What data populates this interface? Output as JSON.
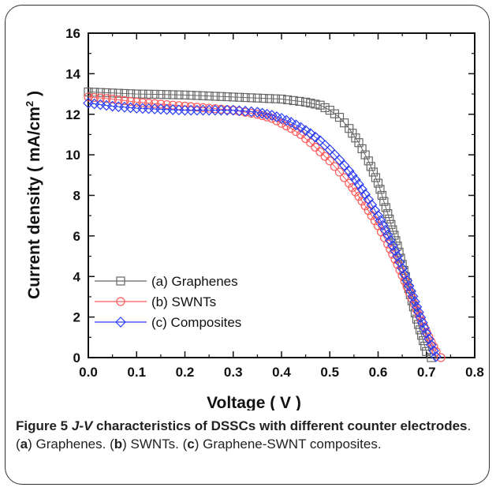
{
  "chart_data": {
    "type": "line",
    "xlabel": "Voltage ( V )",
    "ylabel": "Current density ( mA/cm",
    "ylabel_sup": "2",
    "ylabel_end": " )",
    "xlim": [
      0.0,
      0.8
    ],
    "ylim": [
      0,
      16
    ],
    "xticks": [
      "0.0",
      "0.1",
      "0.2",
      "0.3",
      "0.4",
      "0.5",
      "0.6",
      "0.7",
      "0.8"
    ],
    "yticks": [
      "0",
      "2",
      "4",
      "6",
      "8",
      "10",
      "12",
      "14",
      "16"
    ],
    "grid": false,
    "legend_position": "bottom-left",
    "series": [
      {
        "name": "(a) Graphenes",
        "marker": "square",
        "color": "#666666",
        "x": [
          0.0,
          0.05,
          0.1,
          0.15,
          0.2,
          0.25,
          0.3,
          0.35,
          0.4,
          0.45,
          0.48,
          0.5,
          0.52,
          0.54,
          0.56,
          0.58,
          0.6,
          0.62,
          0.64,
          0.66,
          0.68,
          0.7,
          0.71
        ],
        "y": [
          13.1,
          13.05,
          13.0,
          12.98,
          12.95,
          12.9,
          12.85,
          12.8,
          12.75,
          12.6,
          12.45,
          12.2,
          11.85,
          11.3,
          10.6,
          9.7,
          8.6,
          7.1,
          5.5,
          3.7,
          1.9,
          0.3,
          0.0
        ]
      },
      {
        "name": "(b) SWNTs",
        "marker": "circle",
        "color": "#ff5a5a",
        "x": [
          0.0,
          0.05,
          0.1,
          0.15,
          0.2,
          0.25,
          0.3,
          0.35,
          0.38,
          0.4,
          0.42,
          0.44,
          0.46,
          0.48,
          0.5,
          0.52,
          0.54,
          0.56,
          0.58,
          0.6,
          0.62,
          0.64,
          0.66,
          0.68,
          0.7,
          0.72,
          0.73
        ],
        "y": [
          12.85,
          12.75,
          12.6,
          12.5,
          12.4,
          12.3,
          12.2,
          12.0,
          11.8,
          11.55,
          11.3,
          11.0,
          10.6,
          10.15,
          9.7,
          9.15,
          8.6,
          7.95,
          7.25,
          6.5,
          5.6,
          4.6,
          3.5,
          2.35,
          1.25,
          0.3,
          0.0
        ]
      },
      {
        "name": "(c) Composites",
        "marker": "diamond",
        "color": "#2a3cf5",
        "x": [
          0.0,
          0.05,
          0.1,
          0.15,
          0.2,
          0.25,
          0.3,
          0.35,
          0.38,
          0.4,
          0.42,
          0.44,
          0.46,
          0.48,
          0.5,
          0.52,
          0.54,
          0.56,
          0.58,
          0.6,
          0.62,
          0.64,
          0.66,
          0.68,
          0.7,
          0.72
        ],
        "y": [
          12.55,
          12.4,
          12.3,
          12.25,
          12.2,
          12.2,
          12.2,
          12.1,
          11.95,
          11.8,
          11.6,
          11.35,
          11.05,
          10.7,
          10.25,
          9.75,
          9.2,
          8.55,
          7.8,
          7.0,
          6.05,
          5.0,
          3.8,
          2.5,
          1.2,
          0.05
        ]
      }
    ]
  },
  "caption": {
    "figure_label": "Figure 5",
    "title_italic": "J-V",
    "title_rest": " characteristics of DSSCs with different counter electrodes",
    "part_a_open": ". (",
    "part_a_letter": "a",
    "part_a_text": ") Graphenes. (",
    "part_b_letter": "b",
    "part_b_text": ") SWNTs. (",
    "part_c_letter": "c",
    "part_c_text": ") Graphene-SWNT composites."
  }
}
